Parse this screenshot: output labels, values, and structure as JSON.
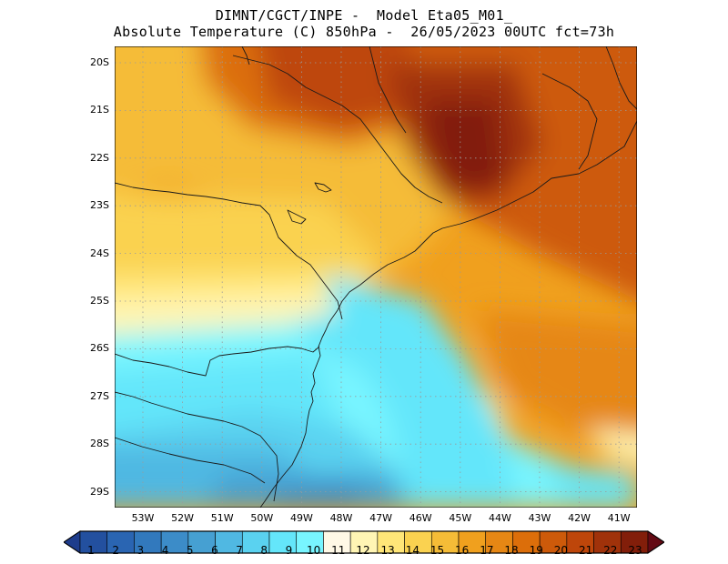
{
  "title": {
    "line1": "DIMNT/CGCT/INPE -  Model Eta05_M01_",
    "line2": "Absolute Temperature (C) 850hPa -  26/05/2023 00UTC fct=73h"
  },
  "map": {
    "lat_labels": [
      "20S",
      "21S",
      "22S",
      "23S",
      "24S",
      "25S",
      "26S",
      "27S",
      "28S",
      "29S"
    ],
    "lon_labels": [
      "53W",
      "52W",
      "51W",
      "50W",
      "49W",
      "48W",
      "47W",
      "46W",
      "45W",
      "44W",
      "43W",
      "42W",
      "41W"
    ],
    "grid": "dotted"
  },
  "colorbar": {
    "labels": [
      "1",
      "2",
      "3",
      "4",
      "5",
      "6",
      "7",
      "8",
      "9",
      "10",
      "11",
      "12",
      "13",
      "14",
      "15",
      "16",
      "17",
      "18",
      "19",
      "20",
      "21",
      "22",
      "23"
    ],
    "colors": [
      "#1e3c8c",
      "#23509f",
      "#2a65b2",
      "#3279bd",
      "#3c8cc8",
      "#46a0d2",
      "#50b8e2",
      "#5ad2f0",
      "#64e6fa",
      "#78f5ff",
      "#fff8e6",
      "#fff5b4",
      "#ffe678",
      "#fad250",
      "#f5bc37",
      "#f0a01e",
      "#e68714",
      "#dc6e0a",
      "#cd5a0a",
      "#be460a",
      "#a0320a",
      "#821e0a",
      "#640a14"
    ]
  }
}
